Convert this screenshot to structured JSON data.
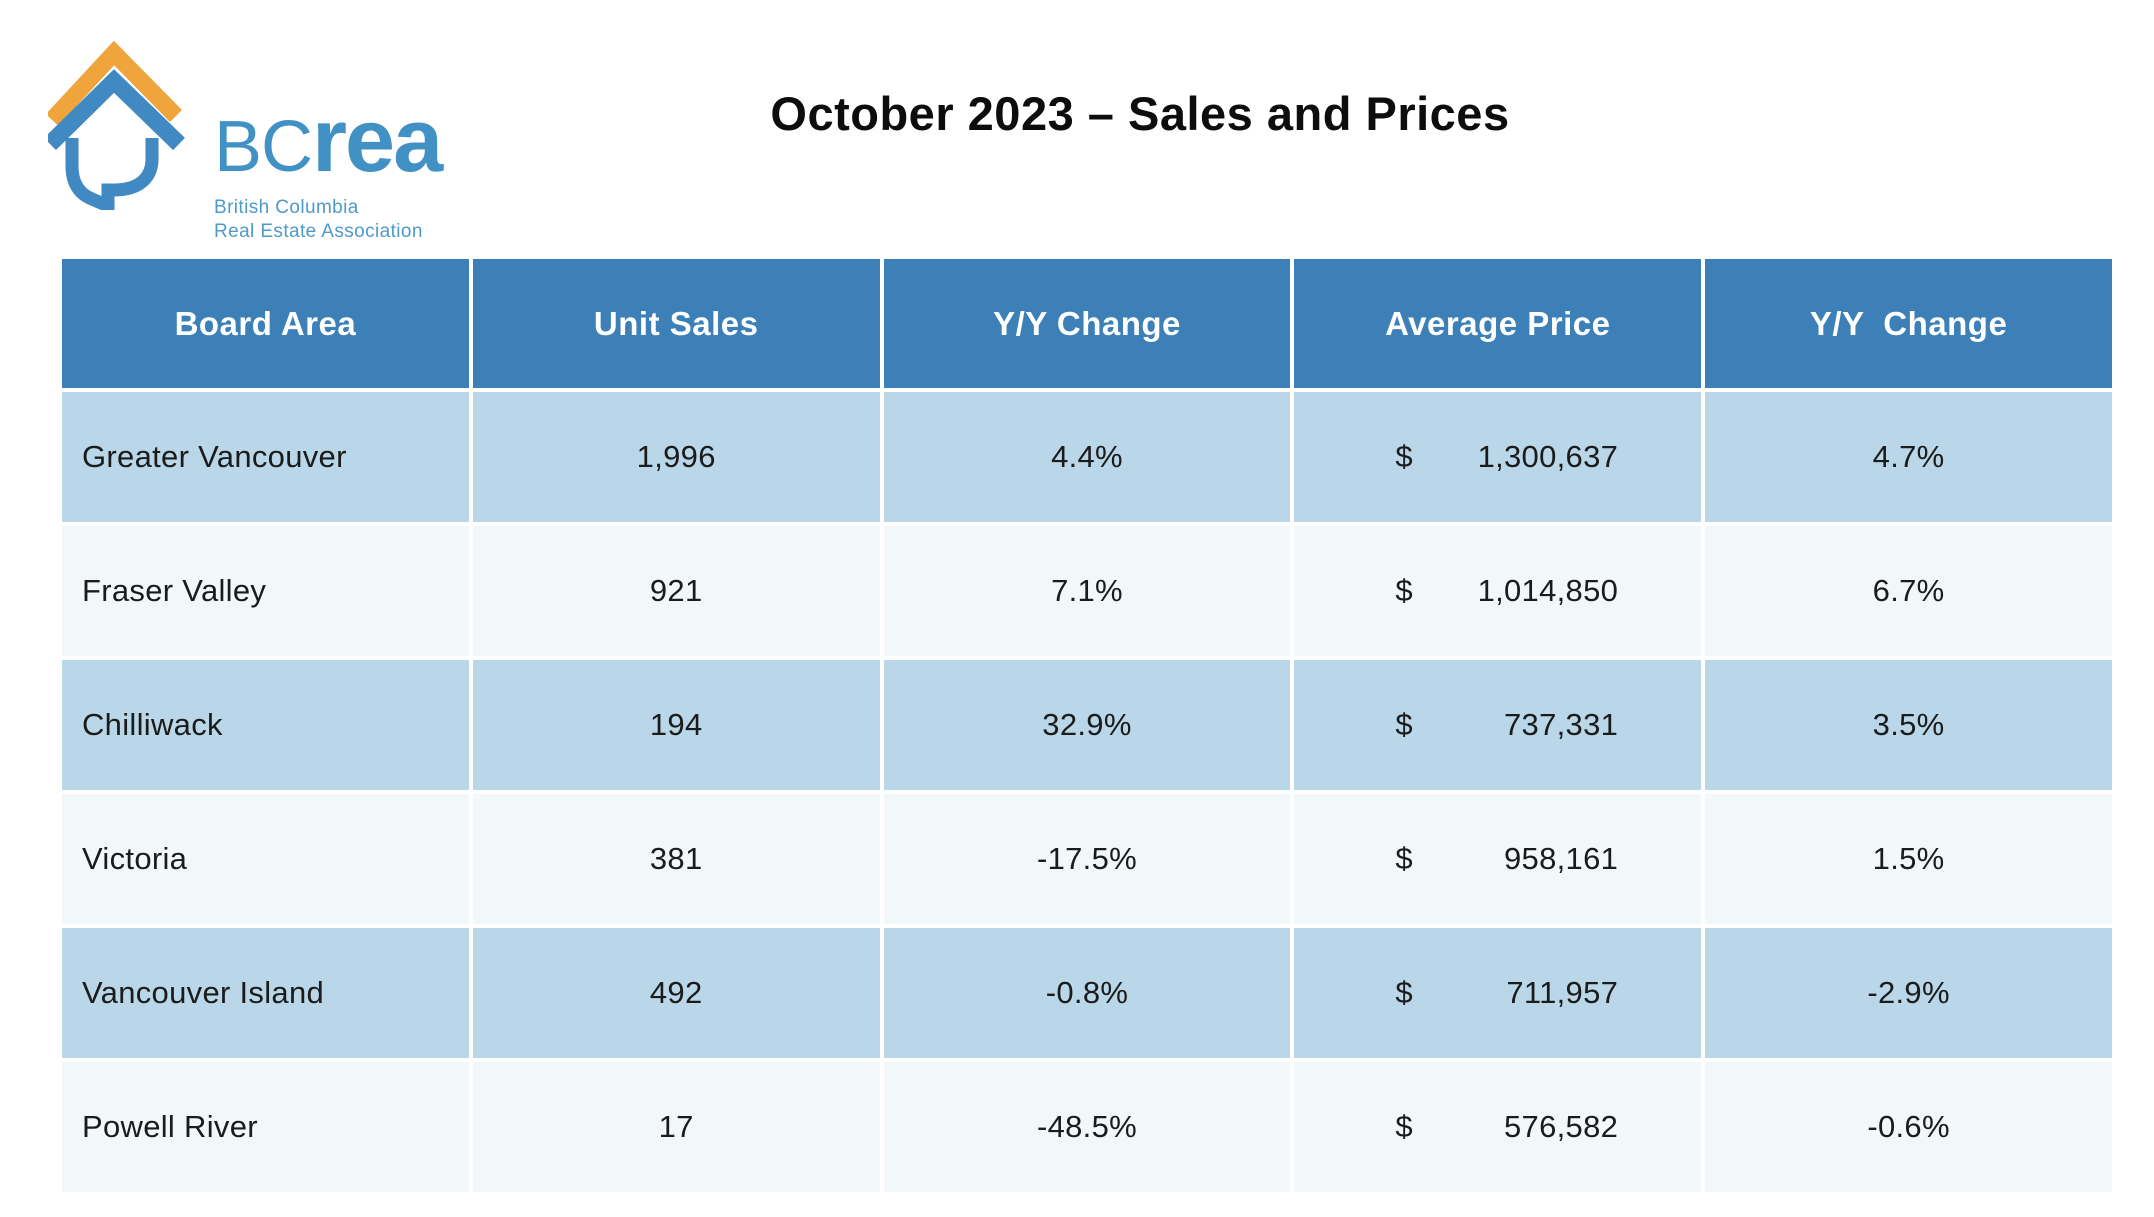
{
  "brand": {
    "logo_icon": "bcrea-house-speech-bubble",
    "wordmark_light": "BC",
    "wordmark_bold": "rea",
    "tagline_line1": "British Columbia",
    "tagline_line2": "Real Estate Association",
    "colors": {
      "orange": "#F0A43C",
      "blue": "#4089C2",
      "wordmark_blue": "#4191C5",
      "tagline_blue": "#4E9AC9"
    }
  },
  "page": {
    "title": "October 2023 – Sales and Prices"
  },
  "table": {
    "headers": [
      "Board Area",
      "Unit Sales",
      "Y/Y Change",
      "Average Price",
      "Y/Y  Change"
    ],
    "currency_symbol": "$",
    "colors": {
      "header_bg": "#3D80B7",
      "header_text": "#FFFFFF",
      "row_alt_blue": "#B9D7E9",
      "row_alt_light": "#F2F7FA",
      "cell_text": "#1B1B1B"
    },
    "rows": [
      {
        "board_area": "Greater Vancouver",
        "unit_sales": "1,996",
        "yy_change_sales": "4.4%",
        "average_price": "1,300,637",
        "yy_change_price": "4.7%"
      },
      {
        "board_area": "Fraser Valley",
        "unit_sales": "921",
        "yy_change_sales": "7.1%",
        "average_price": "1,014,850",
        "yy_change_price": "6.7%"
      },
      {
        "board_area": "Chilliwack",
        "unit_sales": "194",
        "yy_change_sales": "32.9%",
        "average_price": "737,331",
        "yy_change_price": "3.5%"
      },
      {
        "board_area": "Victoria",
        "unit_sales": "381",
        "yy_change_sales": "-17.5%",
        "average_price": "958,161",
        "yy_change_price": "1.5%"
      },
      {
        "board_area": "Vancouver Island",
        "unit_sales": "492",
        "yy_change_sales": "-0.8%",
        "average_price": "711,957",
        "yy_change_price": "-2.9%"
      },
      {
        "board_area": "Powell River",
        "unit_sales": "17",
        "yy_change_sales": "-48.5%",
        "average_price": "576,582",
        "yy_change_price": "-0.6%"
      }
    ]
  },
  "chart_data": {
    "type": "table",
    "title": "October 2023 – Sales and Prices",
    "columns": [
      "Board Area",
      "Unit Sales",
      "Y/Y Change",
      "Average Price",
      "Y/Y Change"
    ],
    "rows": [
      [
        "Greater Vancouver",
        1996,
        "4.4%",
        "$1,300,637",
        "4.7%"
      ],
      [
        "Fraser Valley",
        921,
        "7.1%",
        "$1,014,850",
        "6.7%"
      ],
      [
        "Chilliwack",
        194,
        "32.9%",
        "$737,331",
        "3.5%"
      ],
      [
        "Victoria",
        381,
        "-17.5%",
        "$958,161",
        "1.5%"
      ],
      [
        "Vancouver Island",
        492,
        "-0.8%",
        "$711,957",
        "-2.9%"
      ],
      [
        "Powell River",
        17,
        "-48.5%",
        "$576,582",
        "-0.6%"
      ]
    ]
  }
}
